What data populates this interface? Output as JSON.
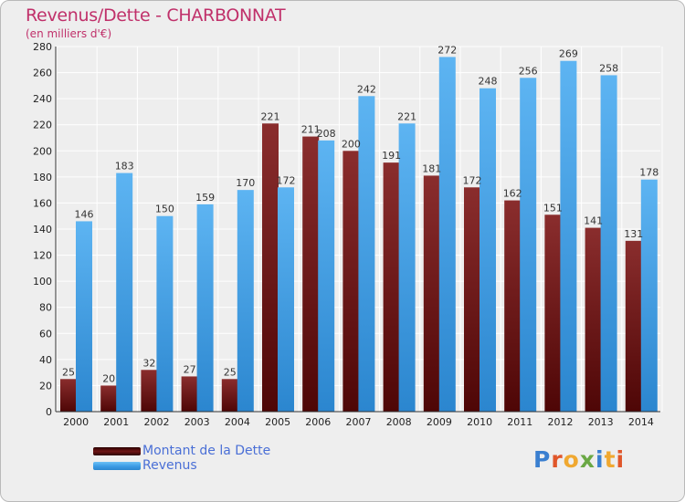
{
  "header": {
    "title": "Revenus/Dette - CHARBONNAT",
    "subtitle": "(en milliers d'€)"
  },
  "logo": {
    "text": "Proxiti"
  },
  "colors": {
    "dette": "#6e1414",
    "revenus": "#3f9ee6",
    "title": "#c0306a",
    "legend_text": "#4a6fd6"
  },
  "chart_data": {
    "type": "bar",
    "title": "Revenus/Dette - CHARBONNAT",
    "subtitle": "(en milliers d'€)",
    "categories": [
      "2000",
      "2001",
      "2002",
      "2003",
      "2004",
      "2005",
      "2006",
      "2007",
      "2008",
      "2009",
      "2010",
      "2011",
      "2012",
      "2013",
      "2014"
    ],
    "series": [
      {
        "name": "Montant de la Dette",
        "values": [
          25,
          20,
          32,
          27,
          25,
          221,
          211,
          200,
          191,
          181,
          172,
          162,
          151,
          141,
          131
        ]
      },
      {
        "name": "Revenus",
        "values": [
          146,
          183,
          150,
          159,
          170,
          172,
          208,
          242,
          221,
          272,
          248,
          256,
          269,
          258,
          178
        ]
      }
    ],
    "ylim": [
      0,
      280
    ],
    "yticks": [
      0,
      20,
      40,
      60,
      80,
      100,
      120,
      140,
      160,
      180,
      200,
      220,
      240,
      260,
      280
    ],
    "grid": true,
    "legend_position": "bottom-left"
  }
}
